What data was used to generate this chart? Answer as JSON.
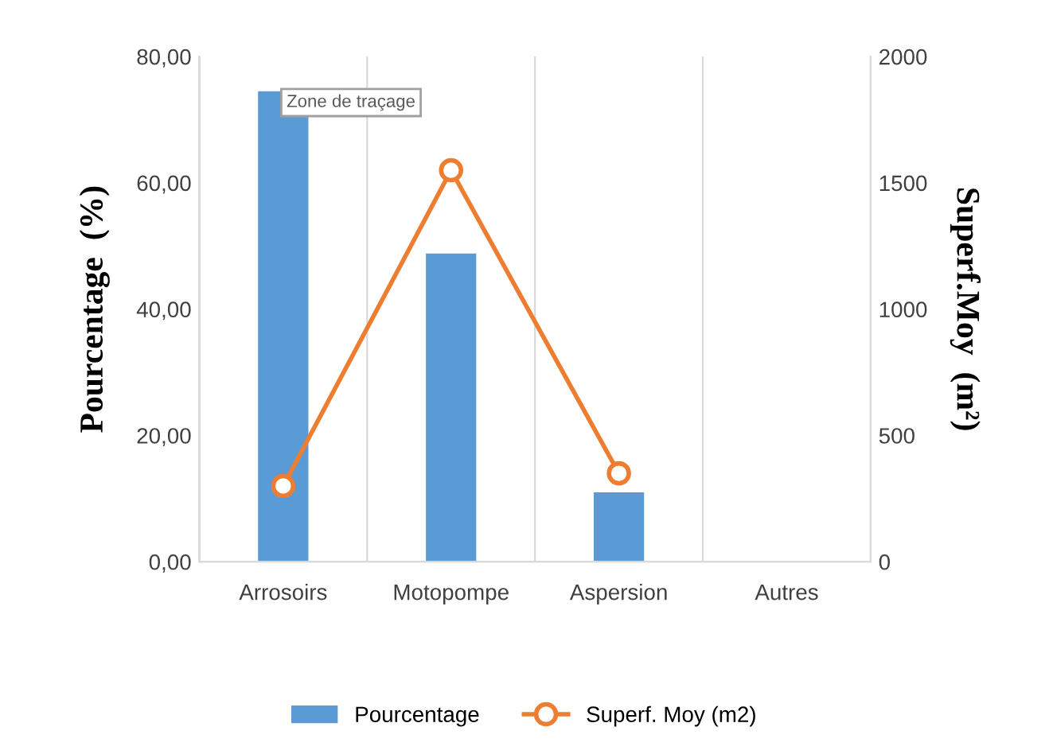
{
  "chart_data": {
    "type": "bar",
    "categories": [
      "Arrosoirs",
      "Motopompe",
      "Aspersion",
      "Autres"
    ],
    "series": [
      {
        "name": "Pourcentage",
        "color": "#5b9bd5",
        "values": [
          74.5,
          48.8,
          11.0,
          null
        ]
      },
      {
        "name": "Superf. Moy (m2)",
        "type": "line",
        "axis": "y2",
        "color": "#ed7d31",
        "marker": "circle",
        "values": [
          300,
          1550,
          350,
          null
        ]
      }
    ],
    "ylabel": "Pourcentage  (%)",
    "y2label": "Superf.Moy  (m²)",
    "ylim": [
      0,
      80
    ],
    "yticks": [
      {
        "value": 0,
        "label": "0,00"
      },
      {
        "value": 20,
        "label": "20,00"
      },
      {
        "value": 40,
        "label": "40,00"
      },
      {
        "value": 60,
        "label": "60,00"
      },
      {
        "value": 80,
        "label": "80,00"
      }
    ],
    "y2lim": [
      0,
      2000
    ],
    "y2ticks": [
      0,
      500,
      1000,
      1500,
      2000
    ],
    "annotations": [
      "Zone de traçage"
    ],
    "grid": "x",
    "legend": "bottom"
  }
}
